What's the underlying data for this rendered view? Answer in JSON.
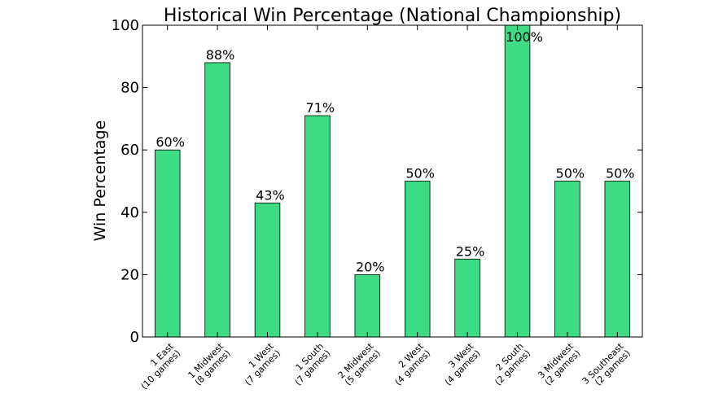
{
  "chart_data": {
    "type": "bar",
    "title": "Historical Win Percentage (National Championship)",
    "xlabel": "",
    "ylabel": "Win Percentage",
    "ylim": [
      0,
      100
    ],
    "yticks": [
      0,
      20,
      40,
      60,
      80,
      100
    ],
    "grid": false,
    "bar_color": "#3ddc84",
    "categories": [
      [
        "1 East",
        "(10 games)"
      ],
      [
        "1 Midwest",
        "(8 games)"
      ],
      [
        "1 West",
        "(7 games)"
      ],
      [
        "1 South",
        "(7 games)"
      ],
      [
        "2 Midwest",
        "(5 games)"
      ],
      [
        "2 West",
        "(4 games)"
      ],
      [
        "3 West",
        "(4 games)"
      ],
      [
        "2 South",
        "(2 games)"
      ],
      [
        "3 Midwest",
        "(2 games)"
      ],
      [
        "3 Southeast",
        "(2 games)"
      ]
    ],
    "values": [
      60,
      88,
      43,
      71,
      20,
      50,
      25,
      100,
      50,
      50
    ],
    "data_labels": [
      "60%",
      "88%",
      "43%",
      "71%",
      "20%",
      "50%",
      "25%",
      "100%",
      "50%",
      "50%"
    ]
  }
}
